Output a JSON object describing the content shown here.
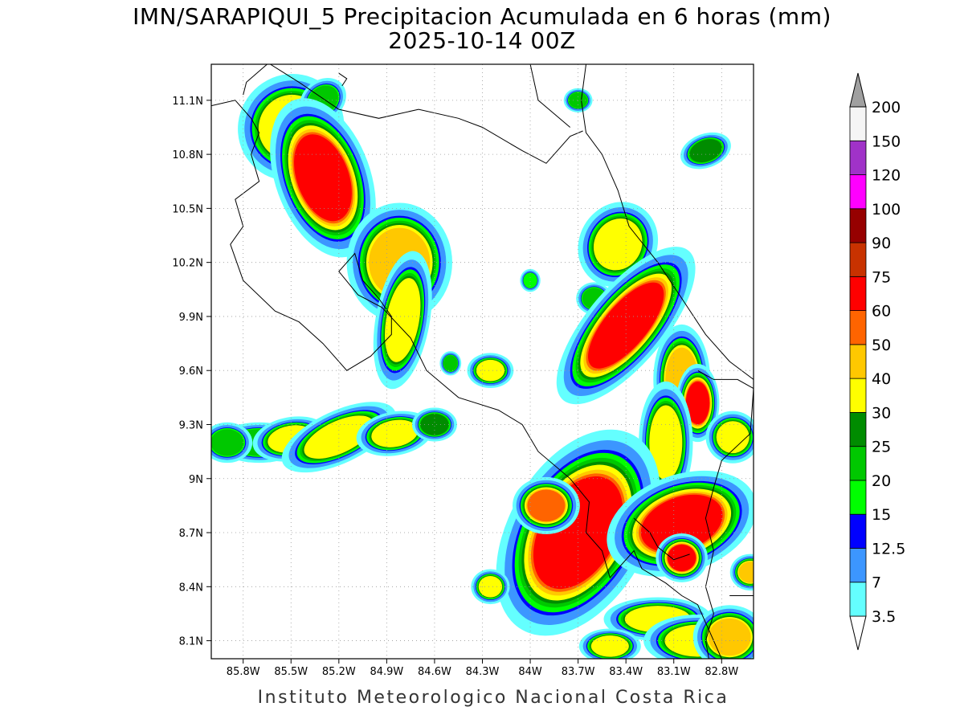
{
  "title": {
    "line1": "IMN/SARAPIQUI_5 Precipitacion Acumulada en 6 horas (mm)",
    "line2": "2025-10-14 00Z"
  },
  "footer": "Instituto Meteorologico Nacional Costa Rica",
  "map": {
    "lon_range": [
      -86.0,
      -82.6
    ],
    "lat_range": [
      8.0,
      11.3
    ],
    "lat_ticks": [
      {
        "value": 11.1,
        "label": "11.1N"
      },
      {
        "value": 10.8,
        "label": "10.8N"
      },
      {
        "value": 10.5,
        "label": "10.5N"
      },
      {
        "value": 10.2,
        "label": "10.2N"
      },
      {
        "value": 9.9,
        "label": "9.9N"
      },
      {
        "value": 9.6,
        "label": "9.6N"
      },
      {
        "value": 9.3,
        "label": "9.3N"
      },
      {
        "value": 9.0,
        "label": "9N"
      },
      {
        "value": 8.7,
        "label": "8.7N"
      },
      {
        "value": 8.4,
        "label": "8.4N"
      },
      {
        "value": 8.1,
        "label": "8.1N"
      }
    ],
    "lon_ticks": [
      {
        "value": -85.8,
        "label": "85.8W"
      },
      {
        "value": -85.5,
        "label": "85.5W"
      },
      {
        "value": -85.2,
        "label": "85.2W"
      },
      {
        "value": -84.9,
        "label": "84.9W"
      },
      {
        "value": -84.6,
        "label": "84.6W"
      },
      {
        "value": -84.3,
        "label": "84.3W"
      },
      {
        "value": -84.0,
        "label": "84W"
      },
      {
        "value": -83.7,
        "label": "83.7W"
      },
      {
        "value": -83.4,
        "label": "83.4W"
      },
      {
        "value": -83.1,
        "label": "83.1W"
      },
      {
        "value": -82.8,
        "label": "82.8W"
      }
    ],
    "grid": true
  },
  "colorbar": {
    "levels": [
      {
        "label": "3.5",
        "color": "#64ffff"
      },
      {
        "label": "7",
        "color": "#3c96ff"
      },
      {
        "label": "12.5",
        "color": "#0000ff"
      },
      {
        "label": "15",
        "color": "#00ff00"
      },
      {
        "label": "20",
        "color": "#00c800"
      },
      {
        "label": "25",
        "color": "#008c00"
      },
      {
        "label": "30",
        "color": "#ffff00"
      },
      {
        "label": "40",
        "color": "#ffc800"
      },
      {
        "label": "50",
        "color": "#ff6400"
      },
      {
        "label": "60",
        "color": "#ff0000"
      },
      {
        "label": "75",
        "color": "#c83200"
      },
      {
        "label": "90",
        "color": "#960000"
      },
      {
        "label": "100",
        "color": "#ff00ff"
      },
      {
        "label": "120",
        "color": "#a032c8"
      },
      {
        "label": "150",
        "color": "#f5f5f5"
      },
      {
        "label": "200",
        "color": "#a0a0a0"
      }
    ],
    "low_end_color": "#ffffff",
    "high_end_color": "#a0a0a0"
  },
  "precip_cells": [
    {
      "lon": -85.5,
      "lat": 10.95,
      "sx": 0.14,
      "sy": 0.12,
      "rot": -50,
      "peak": 30
    },
    {
      "lon": -85.3,
      "lat": 11.1,
      "sx": 0.07,
      "sy": 0.05,
      "rot": -40,
      "peak": 20
    },
    {
      "lon": -85.3,
      "lat": 10.67,
      "sx": 0.11,
      "sy": 0.17,
      "rot": -20,
      "peak": 60
    },
    {
      "lon": -84.82,
      "lat": 10.2,
      "sx": 0.13,
      "sy": 0.13,
      "rot": 0,
      "peak": 40
    },
    {
      "lon": -84.8,
      "lat": 9.88,
      "sx": 0.07,
      "sy": 0.16,
      "rot": 10,
      "peak": 30
    },
    {
      "lon": -84.0,
      "lat": 10.1,
      "sx": 0.03,
      "sy": 0.03,
      "rot": 0,
      "peak": 15
    },
    {
      "lon": -84.25,
      "lat": 9.6,
      "sx": 0.06,
      "sy": 0.04,
      "rot": 0,
      "peak": 30
    },
    {
      "lon": -84.5,
      "lat": 9.64,
      "sx": 0.03,
      "sy": 0.03,
      "rot": 0,
      "peak": 20
    },
    {
      "lon": -83.45,
      "lat": 10.3,
      "sx": 0.1,
      "sy": 0.1,
      "rot": 30,
      "peak": 30
    },
    {
      "lon": -83.6,
      "lat": 10.0,
      "sx": 0.05,
      "sy": 0.04,
      "rot": 0,
      "peak": 20
    },
    {
      "lon": -83.4,
      "lat": 9.85,
      "sx": 0.09,
      "sy": 0.2,
      "rot": 40,
      "peak": 60
    },
    {
      "lon": -83.05,
      "lat": 9.55,
      "sx": 0.07,
      "sy": 0.12,
      "rot": 0,
      "peak": 40
    },
    {
      "lon": -82.95,
      "lat": 9.42,
      "sx": 0.05,
      "sy": 0.08,
      "rot": 0,
      "peak": 60
    },
    {
      "lon": -82.73,
      "lat": 9.23,
      "sx": 0.07,
      "sy": 0.06,
      "rot": 0,
      "peak": 30
    },
    {
      "lon": -83.15,
      "lat": 9.2,
      "sx": 0.07,
      "sy": 0.14,
      "rot": 0,
      "peak": 30
    },
    {
      "lon": -85.7,
      "lat": 9.2,
      "sx": 0.12,
      "sy": 0.05,
      "rot": 0,
      "peak": 20
    },
    {
      "lon": -85.5,
      "lat": 9.22,
      "sx": 0.1,
      "sy": 0.05,
      "rot": -10,
      "peak": 30
    },
    {
      "lon": -85.2,
      "lat": 9.23,
      "sx": 0.16,
      "sy": 0.06,
      "rot": -25,
      "peak": 30
    },
    {
      "lon": -84.85,
      "lat": 9.25,
      "sx": 0.1,
      "sy": 0.05,
      "rot": -10,
      "peak": 30
    },
    {
      "lon": -84.6,
      "lat": 9.3,
      "sx": 0.06,
      "sy": 0.04,
      "rot": 0,
      "peak": 25
    },
    {
      "lon": -85.9,
      "lat": 9.2,
      "sx": 0.07,
      "sy": 0.05,
      "rot": 0,
      "peak": 20
    },
    {
      "lon": -83.7,
      "lat": 8.7,
      "sx": 0.16,
      "sy": 0.23,
      "rot": 30,
      "peak": 60
    },
    {
      "lon": -83.9,
      "lat": 8.85,
      "sx": 0.08,
      "sy": 0.06,
      "rot": 0,
      "peak": 50
    },
    {
      "lon": -83.05,
      "lat": 8.75,
      "sx": 0.18,
      "sy": 0.1,
      "rot": -20,
      "peak": 60
    },
    {
      "lon": -83.05,
      "lat": 8.56,
      "sx": 0.06,
      "sy": 0.05,
      "rot": 0,
      "peak": 60
    },
    {
      "lon": -83.2,
      "lat": 8.22,
      "sx": 0.14,
      "sy": 0.05,
      "rot": 0,
      "peak": 30
    },
    {
      "lon": -82.95,
      "lat": 8.1,
      "sx": 0.14,
      "sy": 0.06,
      "rot": 0,
      "peak": 30
    },
    {
      "lon": -82.75,
      "lat": 8.12,
      "sx": 0.09,
      "sy": 0.07,
      "rot": 0,
      "peak": 40
    },
    {
      "lon": -82.62,
      "lat": 8.48,
      "sx": 0.05,
      "sy": 0.04,
      "rot": 0,
      "peak": 40
    },
    {
      "lon": -84.25,
      "lat": 8.4,
      "sx": 0.05,
      "sy": 0.04,
      "rot": 0,
      "peak": 30
    },
    {
      "lon": -83.5,
      "lat": 8.07,
      "sx": 0.08,
      "sy": 0.04,
      "rot": 0,
      "peak": 30
    },
    {
      "lon": -83.7,
      "lat": 11.1,
      "sx": 0.04,
      "sy": 0.03,
      "rot": 0,
      "peak": 20
    },
    {
      "lon": -82.9,
      "lat": 10.82,
      "sx": 0.07,
      "sy": 0.04,
      "rot": -20,
      "peak": 25
    }
  ],
  "coastlines": [
    [
      [
        -86.0,
        11.07
      ],
      [
        -85.85,
        11.1
      ],
      [
        -85.75,
        11.0
      ],
      [
        -85.7,
        10.92
      ],
      [
        -85.75,
        10.8
      ],
      [
        -85.7,
        10.65
      ],
      [
        -85.85,
        10.55
      ],
      [
        -85.8,
        10.4
      ],
      [
        -85.88,
        10.3
      ],
      [
        -85.8,
        10.1
      ],
      [
        -85.6,
        9.93
      ],
      [
        -85.45,
        9.87
      ],
      [
        -85.3,
        9.75
      ],
      [
        -85.15,
        9.6
      ],
      [
        -85.0,
        9.68
      ],
      [
        -84.87,
        9.8
      ],
      [
        -84.87,
        9.9
      ],
      [
        -84.95,
        10.0
      ],
      [
        -85.05,
        10.1
      ],
      [
        -85.1,
        10.25
      ],
      [
        -85.2,
        10.15
      ],
      [
        -85.08,
        10.02
      ],
      [
        -84.93,
        9.95
      ],
      [
        -84.75,
        9.78
      ],
      [
        -84.65,
        9.6
      ],
      [
        -84.45,
        9.45
      ],
      [
        -84.2,
        9.38
      ],
      [
        -84.05,
        9.3
      ],
      [
        -83.95,
        9.15
      ],
      [
        -83.75,
        9.0
      ],
      [
        -83.63,
        8.87
      ],
      [
        -83.65,
        8.7
      ],
      [
        -83.55,
        8.6
      ],
      [
        -83.5,
        8.45
      ],
      [
        -83.35,
        8.6
      ],
      [
        -83.3,
        8.5
      ],
      [
        -83.15,
        8.42
      ],
      [
        -83.05,
        8.35
      ],
      [
        -82.95,
        8.3
      ],
      [
        -82.9,
        8.2
      ],
      [
        -82.85,
        8.1
      ],
      [
        -82.8,
        8.0
      ]
    ],
    [
      [
        -83.65,
        11.3
      ],
      [
        -83.68,
        11.1
      ],
      [
        -83.65,
        10.92
      ],
      [
        -83.55,
        10.8
      ],
      [
        -83.45,
        10.6
      ],
      [
        -83.38,
        10.4
      ],
      [
        -83.2,
        10.2
      ],
      [
        -83.05,
        10.0
      ],
      [
        -82.9,
        9.8
      ],
      [
        -82.75,
        9.65
      ],
      [
        -82.6,
        9.55
      ]
    ],
    [
      [
        -85.63,
        11.3
      ],
      [
        -85.45,
        11.2
      ],
      [
        -85.2,
        11.05
      ],
      [
        -84.95,
        11.0
      ],
      [
        -84.7,
        11.05
      ],
      [
        -84.45,
        11.0
      ],
      [
        -84.3,
        10.95
      ],
      [
        -84.05,
        10.82
      ],
      [
        -83.9,
        10.75
      ],
      [
        -83.75,
        10.9
      ],
      [
        -83.67,
        10.93
      ]
    ],
    [
      [
        -84.0,
        11.3
      ],
      [
        -83.95,
        11.1
      ],
      [
        -83.75,
        10.95
      ]
    ],
    [
      [
        -82.95,
        9.6
      ],
      [
        -82.85,
        9.55
      ],
      [
        -82.7,
        9.55
      ],
      [
        -82.6,
        9.5
      ],
      [
        -82.62,
        9.25
      ],
      [
        -82.8,
        9.1
      ],
      [
        -82.85,
        8.95
      ],
      [
        -82.9,
        8.78
      ],
      [
        -82.85,
        8.6
      ],
      [
        -82.9,
        8.4
      ],
      [
        -82.85,
        8.25
      ],
      [
        -82.9,
        8.1
      ],
      [
        -82.88,
        8.0
      ]
    ],
    [
      [
        -82.75,
        8.35
      ],
      [
        -82.6,
        8.35
      ]
    ],
    [
      [
        -83.35,
        8.78
      ],
      [
        -83.25,
        8.7
      ],
      [
        -83.2,
        8.62
      ],
      [
        -83.1,
        8.55
      ],
      [
        -83.0,
        8.58
      ]
    ],
    [
      [
        -85.65,
        11.3
      ],
      [
        -85.78,
        11.2
      ],
      [
        -85.8,
        11.13
      ]
    ],
    [
      [
        -85.2,
        11.25
      ],
      [
        -85.15,
        11.22
      ],
      [
        -85.18,
        11.18
      ]
    ]
  ]
}
